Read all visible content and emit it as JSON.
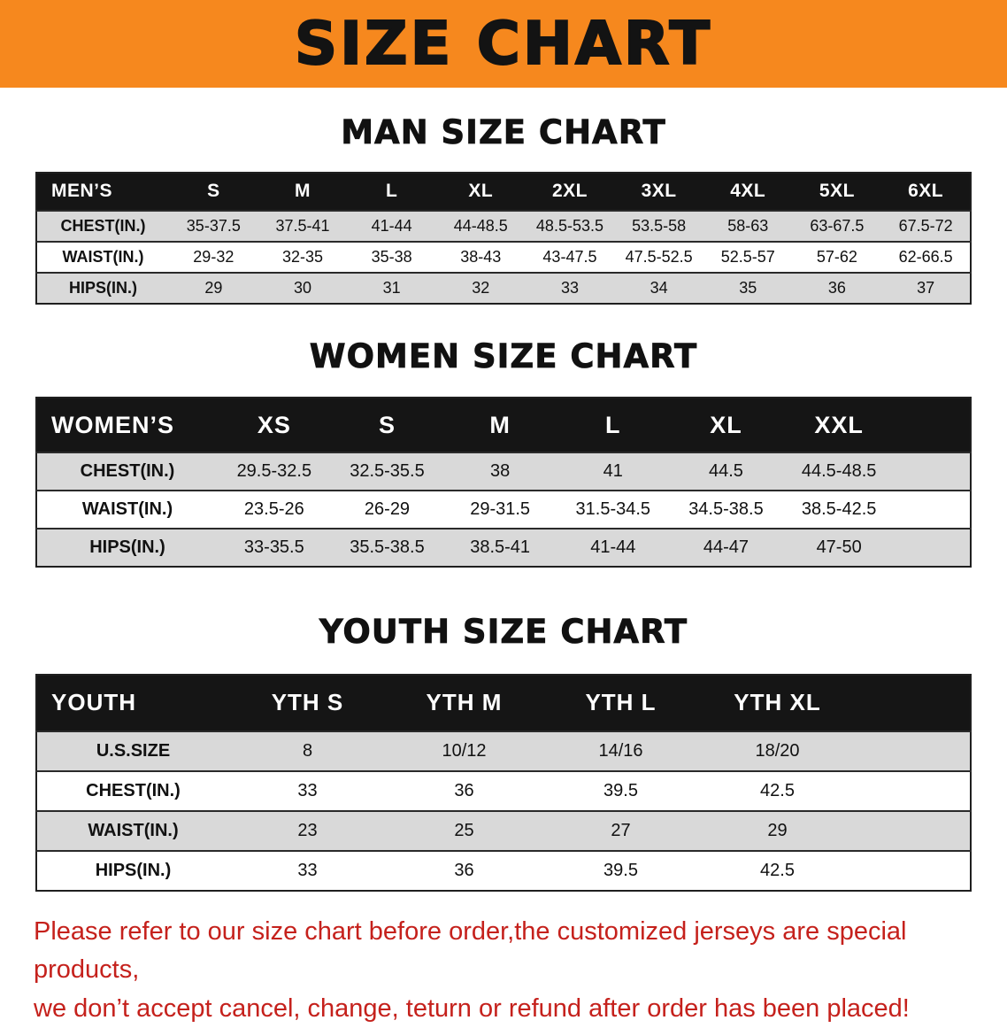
{
  "banner": {
    "title": "SIZE CHART",
    "bg_color": "#f6881e"
  },
  "sections": [
    {
      "id": "men",
      "heading": "MAN SIZE CHART",
      "table": {
        "header": [
          "MEN’S",
          "S",
          "M",
          "L",
          "XL",
          "2XL",
          "3XL",
          "4XL",
          "5XL",
          "6XL"
        ],
        "rows": [
          [
            "CHEST(IN.)",
            "35-37.5",
            "37.5-41",
            "41-44",
            "44-48.5",
            "48.5-53.5",
            "53.5-58",
            "58-63",
            "63-67.5",
            "67.5-72"
          ],
          [
            "WAIST(IN.)",
            "29-32",
            "32-35",
            "35-38",
            "38-43",
            "43-47.5",
            "47.5-52.5",
            "52.5-57",
            "57-62",
            "62-66.5"
          ],
          [
            "HIPS(IN.)",
            "29",
            "30",
            "31",
            "32",
            "33",
            "34",
            "35",
            "36",
            "37"
          ]
        ]
      }
    },
    {
      "id": "women",
      "heading": "WOMEN SIZE CHART",
      "table": {
        "header": [
          "WOMEN’S",
          "XS",
          "S",
          "M",
          "L",
          "XL",
          "XXL"
        ],
        "rows": [
          [
            "CHEST(IN.)",
            "29.5-32.5",
            "32.5-35.5",
            "38",
            "41",
            "44.5",
            "44.5-48.5"
          ],
          [
            "WAIST(IN.)",
            "23.5-26",
            "26-29",
            "29-31.5",
            "31.5-34.5",
            "34.5-38.5",
            "38.5-42.5"
          ],
          [
            "HIPS(IN.)",
            "33-35.5",
            "35.5-38.5",
            "38.5-41",
            "41-44",
            "44-47",
            "47-50"
          ]
        ]
      }
    },
    {
      "id": "youth",
      "heading": "YOUTH SIZE CHART",
      "table": {
        "header": [
          "YOUTH",
          "YTH S",
          "YTH M",
          "YTH L",
          "YTH XL"
        ],
        "rows": [
          [
            "U.S.SIZE",
            "8",
            "10/12",
            "14/16",
            "18/20"
          ],
          [
            "CHEST(IN.)",
            "33",
            "36",
            "39.5",
            "42.5"
          ],
          [
            "WAIST(IN.)",
            "23",
            "25",
            "27",
            "29"
          ],
          [
            "HIPS(IN.)",
            "33",
            "36",
            "39.5",
            "42.5"
          ]
        ]
      }
    }
  ],
  "disclaimer": {
    "line1": "Please refer to our size chart before order,the customized jerseys are special products,",
    "line2": "we don’t accept cancel, change, teturn or refund after order has been placed!",
    "text_color": "#c5211c"
  },
  "colors": {
    "banner_bg": "#f6881e",
    "table_header_bg": "#151515",
    "row_stripe": "#d9d9d9"
  }
}
